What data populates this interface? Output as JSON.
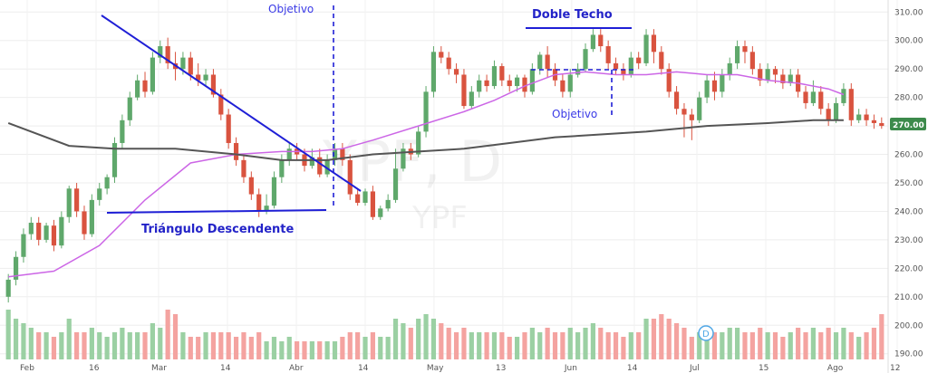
{
  "chart_data": {
    "type": "candlestick",
    "symbol": "YPF, D",
    "watermark_ticker": "YPF",
    "price_axis": {
      "ylim": [
        188,
        312
      ],
      "ticks": [
        "310.00",
        "300.00",
        "290.00",
        "280.00",
        "270.00",
        "260.00",
        "250.00",
        "240.00",
        "230.00",
        "220.00",
        "210.00",
        "200.00",
        "190.00"
      ],
      "last_price_label": "270.00"
    },
    "time_axis": {
      "labels": [
        "Feb",
        "16",
        "Mar",
        "14",
        "Abr",
        "14",
        "May",
        "13",
        "Jun",
        "14",
        "Jul",
        "15",
        "Ago",
        "12"
      ]
    },
    "colors": {
      "up": "#5fa86b",
      "down": "#d9533f",
      "up_volume": "#9bd0a3",
      "down_volume": "#f4a3a0",
      "ma_short": "#cc66e6",
      "ma_long": "#555555",
      "trendlines": "#1f1fd6",
      "last_price_badge": "#3c8a4b"
    },
    "moving_averages": [
      {
        "color_role": "ma_short",
        "points": [
          [
            0,
            217
          ],
          [
            6,
            219
          ],
          [
            12,
            228
          ],
          [
            18,
            244
          ],
          [
            24,
            257
          ],
          [
            30,
            260
          ],
          [
            36,
            261
          ],
          [
            40,
            261
          ],
          [
            44,
            262
          ],
          [
            48,
            265
          ],
          [
            54,
            270
          ],
          [
            60,
            275
          ],
          [
            64,
            279
          ],
          [
            68,
            284
          ],
          [
            72,
            288
          ],
          [
            76,
            289
          ],
          [
            80,
            288
          ],
          [
            84,
            288
          ],
          [
            88,
            289
          ],
          [
            92,
            288
          ],
          [
            96,
            288
          ],
          [
            100,
            286
          ],
          [
            104,
            285
          ],
          [
            108,
            283
          ],
          [
            110,
            281
          ]
        ]
      },
      {
        "color_role": "ma_long",
        "points": [
          [
            0,
            271
          ],
          [
            8,
            263
          ],
          [
            14,
            262
          ],
          [
            22,
            262
          ],
          [
            30,
            260
          ],
          [
            36,
            258
          ],
          [
            42,
            258
          ],
          [
            48,
            260
          ],
          [
            54,
            261
          ],
          [
            60,
            262
          ],
          [
            66,
            264
          ],
          [
            72,
            266
          ],
          [
            78,
            267
          ],
          [
            84,
            268
          ],
          [
            92,
            270
          ],
          [
            100,
            271
          ],
          [
            106,
            272
          ],
          [
            110,
            272
          ]
        ]
      }
    ],
    "candles": [
      [
        210,
        216,
        208,
        218,
        0.55
      ],
      [
        216,
        224,
        214,
        226,
        0.45
      ],
      [
        224,
        232,
        222,
        234,
        0.4
      ],
      [
        232,
        236,
        230,
        238,
        0.35
      ],
      [
        236,
        230,
        228,
        238,
        0.3
      ],
      [
        230,
        235,
        229,
        236,
        0.3
      ],
      [
        235,
        228,
        226,
        237,
        0.25
      ],
      [
        228,
        238,
        227,
        240,
        0.3
      ],
      [
        238,
        248,
        236,
        249,
        0.45
      ],
      [
        248,
        240,
        238,
        250,
        0.3
      ],
      [
        240,
        232,
        230,
        242,
        0.3
      ],
      [
        232,
        244,
        231,
        246,
        0.35
      ],
      [
        244,
        248,
        242,
        250,
        0.3
      ],
      [
        248,
        252,
        246,
        253,
        0.25
      ],
      [
        252,
        264,
        250,
        266,
        0.3
      ],
      [
        264,
        272,
        262,
        274,
        0.35
      ],
      [
        272,
        280,
        270,
        282,
        0.3
      ],
      [
        280,
        286,
        279,
        288,
        0.3
      ],
      [
        286,
        282,
        280,
        289,
        0.3
      ],
      [
        282,
        294,
        281,
        296,
        0.4
      ],
      [
        294,
        298,
        292,
        300,
        0.35
      ],
      [
        298,
        292,
        290,
        301,
        0.55
      ],
      [
        292,
        290,
        286,
        296,
        0.5
      ],
      [
        290,
        294,
        288,
        296,
        0.3
      ],
      [
        294,
        288,
        286,
        296,
        0.25
      ],
      [
        288,
        286,
        284,
        292,
        0.25
      ],
      [
        286,
        288,
        284,
        290,
        0.3
      ],
      [
        288,
        281,
        280,
        290,
        0.3
      ],
      [
        281,
        274,
        272,
        283,
        0.3
      ],
      [
        274,
        264,
        262,
        276,
        0.3
      ],
      [
        264,
        258,
        256,
        266,
        0.25
      ],
      [
        258,
        252,
        250,
        260,
        0.3
      ],
      [
        252,
        246,
        244,
        254,
        0.25
      ],
      [
        246,
        240,
        238,
        248,
        0.3
      ],
      [
        240,
        242,
        239,
        246,
        0.2
      ],
      [
        242,
        252,
        241,
        254,
        0.25
      ],
      [
        252,
        258,
        250,
        260,
        0.2
      ],
      [
        258,
        262,
        256,
        264,
        0.25
      ],
      [
        262,
        260,
        258,
        264,
        0.2
      ],
      [
        260,
        256,
        254,
        262,
        0.2
      ],
      [
        256,
        259,
        255,
        262,
        0.2
      ],
      [
        259,
        253,
        252,
        262,
        0.2
      ],
      [
        253,
        258,
        252,
        260,
        0.2
      ],
      [
        258,
        262,
        256,
        264,
        0.2
      ],
      [
        262,
        258,
        256,
        264,
        0.25
      ],
      [
        258,
        246,
        244,
        260,
        0.3
      ],
      [
        246,
        243,
        242,
        248,
        0.3
      ],
      [
        243,
        247,
        242,
        248,
        0.25
      ],
      [
        247,
        238,
        237,
        249,
        0.3
      ],
      [
        238,
        241,
        237,
        242,
        0.25
      ],
      [
        241,
        244,
        240,
        246,
        0.25
      ],
      [
        244,
        255,
        243,
        262,
        0.45
      ],
      [
        255,
        262,
        254,
        264,
        0.4
      ],
      [
        262,
        260,
        258,
        264,
        0.35
      ],
      [
        260,
        268,
        259,
        270,
        0.45
      ],
      [
        268,
        282,
        266,
        284,
        0.5
      ],
      [
        282,
        296,
        280,
        298,
        0.45
      ],
      [
        296,
        294,
        292,
        298,
        0.4
      ],
      [
        294,
        290,
        288,
        296,
        0.35
      ],
      [
        290,
        288,
        285,
        292,
        0.3
      ],
      [
        288,
        277,
        276,
        290,
        0.35
      ],
      [
        277,
        282,
        276,
        284,
        0.3
      ],
      [
        282,
        286,
        280,
        288,
        0.3
      ],
      [
        286,
        284,
        282,
        288,
        0.3
      ],
      [
        284,
        291,
        283,
        293,
        0.3
      ],
      [
        291,
        286,
        284,
        292,
        0.3
      ],
      [
        286,
        284,
        282,
        288,
        0.25
      ],
      [
        284,
        287,
        282,
        288,
        0.25
      ],
      [
        287,
        282,
        280,
        288,
        0.3
      ],
      [
        282,
        290,
        281,
        292,
        0.35
      ],
      [
        290,
        295,
        288,
        296,
        0.3
      ],
      [
        295,
        290,
        287,
        298,
        0.35
      ],
      [
        290,
        286,
        284,
        292,
        0.3
      ],
      [
        286,
        282,
        280,
        288,
        0.3
      ],
      [
        282,
        288,
        280,
        290,
        0.35
      ],
      [
        288,
        290,
        287,
        292,
        0.3
      ],
      [
        290,
        297,
        289,
        299,
        0.35
      ],
      [
        297,
        302,
        296,
        304,
        0.4
      ],
      [
        302,
        298,
        296,
        304,
        0.35
      ],
      [
        298,
        292,
        290,
        300,
        0.3
      ],
      [
        292,
        290,
        288,
        294,
        0.3
      ],
      [
        290,
        288,
        286,
        292,
        0.25
      ],
      [
        288,
        294,
        287,
        296,
        0.3
      ],
      [
        294,
        292,
        290,
        296,
        0.3
      ],
      [
        292,
        302,
        291,
        304,
        0.45
      ],
      [
        302,
        296,
        292,
        304,
        0.45
      ],
      [
        296,
        290,
        288,
        298,
        0.5
      ],
      [
        290,
        282,
        280,
        292,
        0.45
      ],
      [
        282,
        276,
        274,
        284,
        0.4
      ],
      [
        276,
        274,
        266,
        278,
        0.35
      ],
      [
        274,
        272,
        265,
        276,
        0.25
      ],
      [
        272,
        280,
        271,
        282,
        0.3
      ],
      [
        280,
        286,
        278,
        288,
        0.35
      ],
      [
        286,
        282,
        279,
        289,
        0.3
      ],
      [
        282,
        288,
        280,
        290,
        0.3
      ],
      [
        288,
        292,
        286,
        294,
        0.35
      ],
      [
        292,
        298,
        290,
        300,
        0.35
      ],
      [
        298,
        296,
        292,
        300,
        0.3
      ],
      [
        296,
        290,
        288,
        298,
        0.3
      ],
      [
        290,
        286,
        284,
        292,
        0.35
      ],
      [
        286,
        290,
        285,
        292,
        0.3
      ],
      [
        290,
        288,
        285,
        291,
        0.3
      ],
      [
        288,
        285,
        283,
        290,
        0.25
      ],
      [
        285,
        288,
        284,
        290,
        0.3
      ],
      [
        288,
        282,
        280,
        290,
        0.35
      ],
      [
        282,
        278,
        276,
        284,
        0.3
      ],
      [
        278,
        282,
        277,
        286,
        0.35
      ],
      [
        282,
        276,
        274,
        284,
        0.3
      ],
      [
        276,
        272,
        270,
        278,
        0.35
      ],
      [
        272,
        278,
        271,
        280,
        0.3
      ],
      [
        278,
        283,
        277,
        285,
        0.35
      ],
      [
        283,
        272,
        270,
        285,
        0.3
      ],
      [
        272,
        274,
        271,
        276,
        0.25
      ],
      [
        274,
        272,
        270,
        276,
        0.3
      ],
      [
        272,
        271,
        269,
        274,
        0.35
      ],
      [
        271,
        270,
        269,
        273,
        0.5
      ]
    ]
  },
  "annotations": {
    "triangle_label": "Triángulo Descendente",
    "double_top_label": "Doble Techo",
    "target_label_1": "Objetivo",
    "target_label_2": "Objetivo",
    "alert_badge": "D"
  }
}
